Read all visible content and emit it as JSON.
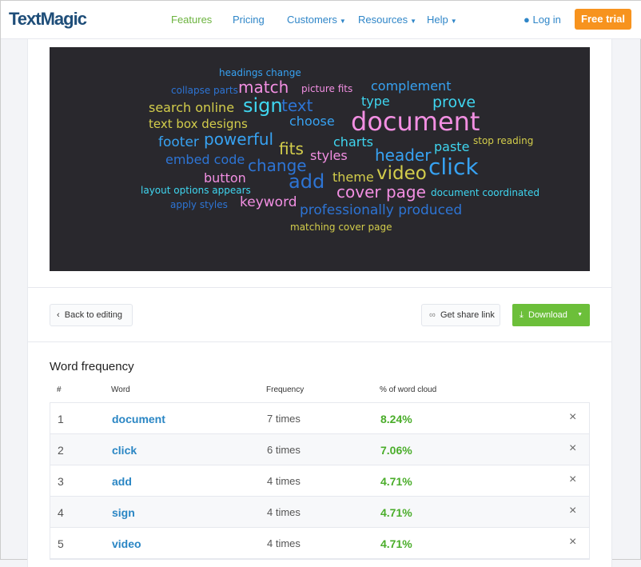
{
  "header": {
    "logo": "TextMagic",
    "nav": [
      {
        "label": "Features",
        "active": true
      },
      {
        "label": "Pricing"
      },
      {
        "label": "Customers",
        "dropdown": true
      },
      {
        "label": "Resources",
        "dropdown": true
      },
      {
        "label": "Help",
        "dropdown": true
      }
    ],
    "login": "Log in",
    "trial": "Free trial"
  },
  "colors": {
    "pink": "#f28fe2",
    "cyan": "#3fd6f0",
    "blue": "#37a2f2",
    "darkblue": "#2d74d4",
    "yellow": "#d3cd4b",
    "accent_green": "#6cbf3a",
    "accent_orange": "#f7931e"
  },
  "cloud": {
    "words": [
      {
        "text": "headings change",
        "color": "blue"
      },
      {
        "text": "collapse parts",
        "color": "darkblue"
      },
      {
        "text": "match",
        "color": "pink"
      },
      {
        "text": "picture fits",
        "color": "pink"
      },
      {
        "text": "complement",
        "color": "blue"
      },
      {
        "text": "search online",
        "color": "yellow"
      },
      {
        "text": "sign",
        "color": "cyan"
      },
      {
        "text": "text",
        "color": "darkblue"
      },
      {
        "text": "type",
        "color": "cyan"
      },
      {
        "text": "prove",
        "color": "cyan"
      },
      {
        "text": "text box designs",
        "color": "yellow"
      },
      {
        "text": "choose",
        "color": "blue"
      },
      {
        "text": "document",
        "color": "pink"
      },
      {
        "text": "footer",
        "color": "blue"
      },
      {
        "text": "powerful",
        "color": "blue"
      },
      {
        "text": "fits",
        "color": "yellow"
      },
      {
        "text": "charts",
        "color": "cyan"
      },
      {
        "text": "stop reading",
        "color": "yellow"
      },
      {
        "text": "paste",
        "color": "cyan"
      },
      {
        "text": "styles",
        "color": "pink"
      },
      {
        "text": "embed code",
        "color": "darkblue"
      },
      {
        "text": "header",
        "color": "blue"
      },
      {
        "text": "change",
        "color": "darkblue"
      },
      {
        "text": "click",
        "color": "blue"
      },
      {
        "text": "button",
        "color": "pink"
      },
      {
        "text": "theme",
        "color": "yellow"
      },
      {
        "text": "video",
        "color": "yellow"
      },
      {
        "text": "add",
        "color": "darkblue"
      },
      {
        "text": "layout options appears",
        "color": "cyan"
      },
      {
        "text": "cover page",
        "color": "pink"
      },
      {
        "text": "document coordinated",
        "color": "cyan"
      },
      {
        "text": "apply styles",
        "color": "darkblue"
      },
      {
        "text": "keyword",
        "color": "pink"
      },
      {
        "text": "professionally produced",
        "color": "darkblue"
      },
      {
        "text": "matching cover page",
        "color": "yellow"
      }
    ]
  },
  "actions": {
    "back": "Back to editing",
    "share": "Get share link",
    "download": "Download"
  },
  "frequency": {
    "title": "Word frequency",
    "columns": [
      "#",
      "Word",
      "Frequency",
      "% of word cloud"
    ],
    "rows": [
      {
        "n": "1",
        "word": "document",
        "freq": "7 times",
        "pct": "8.24%"
      },
      {
        "n": "2",
        "word": "click",
        "freq": "6 times",
        "pct": "7.06%"
      },
      {
        "n": "3",
        "word": "add",
        "freq": "4 times",
        "pct": "4.71%"
      },
      {
        "n": "4",
        "word": "sign",
        "freq": "4 times",
        "pct": "4.71%"
      },
      {
        "n": "5",
        "word": "video",
        "freq": "4 times",
        "pct": "4.71%"
      }
    ]
  }
}
